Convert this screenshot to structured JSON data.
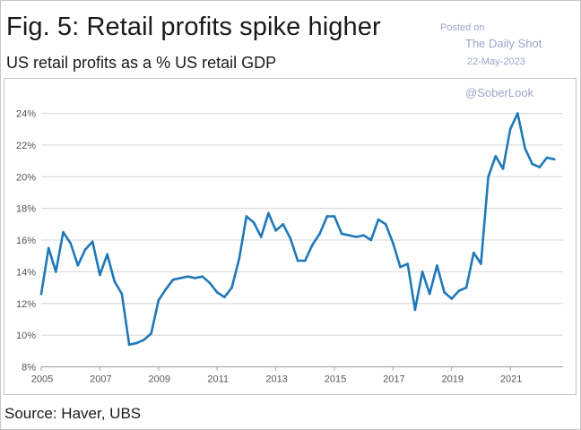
{
  "header": {
    "title": "Fig. 5: Retail profits spike higher",
    "subtitle": "US retail profits as a % US retail GDP"
  },
  "watermark": {
    "posted_on": "Posted on",
    "name": "The Daily Shot",
    "date": "22-May-2023",
    "handle": "@SoberLook"
  },
  "footer": {
    "source": "Source: Haver, UBS"
  },
  "colors": {
    "line": "#1f78b8",
    "grid": "#d6d6d6",
    "tick_text": "#555555",
    "watermark": "#9aa6c8"
  },
  "chart_data": {
    "type": "line",
    "title": "Fig. 5: Retail profits spike higher",
    "subtitle": "US retail profits as a % US retail GDP",
    "xlabel": "",
    "ylabel": "",
    "x_tick_labels": [
      "2005",
      "2007",
      "2009",
      "2011",
      "2013",
      "2015",
      "2017",
      "2019",
      "2021"
    ],
    "y_tick_labels": [
      "8%",
      "10%",
      "12%",
      "14%",
      "16%",
      "18%",
      "20%",
      "22%",
      "24%"
    ],
    "xlim": [
      2005,
      2022.8
    ],
    "ylim": [
      8,
      24
    ],
    "grid": true,
    "legend": "none",
    "series": [
      {
        "values": [
          [
            2005.0,
            12.6
          ],
          [
            2005.25,
            15.5
          ],
          [
            2005.5,
            14.0
          ],
          [
            2005.75,
            16.5
          ],
          [
            2006.0,
            15.8
          ],
          [
            2006.25,
            14.4
          ],
          [
            2006.5,
            15.4
          ],
          [
            2006.75,
            15.9
          ],
          [
            2007.0,
            13.8
          ],
          [
            2007.25,
            15.1
          ],
          [
            2007.5,
            13.4
          ],
          [
            2007.75,
            12.6
          ],
          [
            2008.0,
            9.4
          ],
          [
            2008.25,
            9.5
          ],
          [
            2008.5,
            9.7
          ],
          [
            2008.75,
            10.1
          ],
          [
            2009.0,
            12.2
          ],
          [
            2009.25,
            12.9
          ],
          [
            2009.5,
            13.5
          ],
          [
            2009.75,
            13.6
          ],
          [
            2010.0,
            13.7
          ],
          [
            2010.25,
            13.6
          ],
          [
            2010.5,
            13.7
          ],
          [
            2010.75,
            13.3
          ],
          [
            2011.0,
            12.7
          ],
          [
            2011.25,
            12.4
          ],
          [
            2011.5,
            13.0
          ],
          [
            2011.75,
            14.8
          ],
          [
            2012.0,
            17.5
          ],
          [
            2012.25,
            17.1
          ],
          [
            2012.5,
            16.2
          ],
          [
            2012.75,
            17.7
          ],
          [
            2013.0,
            16.6
          ],
          [
            2013.25,
            17.0
          ],
          [
            2013.5,
            16.1
          ],
          [
            2013.75,
            14.7
          ],
          [
            2014.0,
            14.7
          ],
          [
            2014.25,
            15.7
          ],
          [
            2014.5,
            16.4
          ],
          [
            2014.75,
            17.5
          ],
          [
            2015.0,
            17.5
          ],
          [
            2015.25,
            16.4
          ],
          [
            2015.5,
            16.3
          ],
          [
            2015.75,
            16.2
          ],
          [
            2016.0,
            16.3
          ],
          [
            2016.25,
            16.0
          ],
          [
            2016.5,
            17.3
          ],
          [
            2016.75,
            17.0
          ],
          [
            2017.0,
            15.8
          ],
          [
            2017.25,
            14.3
          ],
          [
            2017.5,
            14.5
          ],
          [
            2017.75,
            11.6
          ],
          [
            2018.0,
            14.0
          ],
          [
            2018.25,
            12.6
          ],
          [
            2018.5,
            14.4
          ],
          [
            2018.75,
            12.7
          ],
          [
            2019.0,
            12.3
          ],
          [
            2019.25,
            12.8
          ],
          [
            2019.5,
            13.0
          ],
          [
            2019.75,
            15.2
          ],
          [
            2020.0,
            14.5
          ],
          [
            2020.25,
            20.0
          ],
          [
            2020.5,
            21.3
          ],
          [
            2020.75,
            20.5
          ],
          [
            2021.0,
            23.0
          ],
          [
            2021.25,
            24.0
          ],
          [
            2021.5,
            21.8
          ],
          [
            2021.75,
            20.8
          ],
          [
            2022.0,
            20.6
          ],
          [
            2022.25,
            21.2
          ],
          [
            2022.5,
            21.1
          ]
        ]
      }
    ]
  }
}
